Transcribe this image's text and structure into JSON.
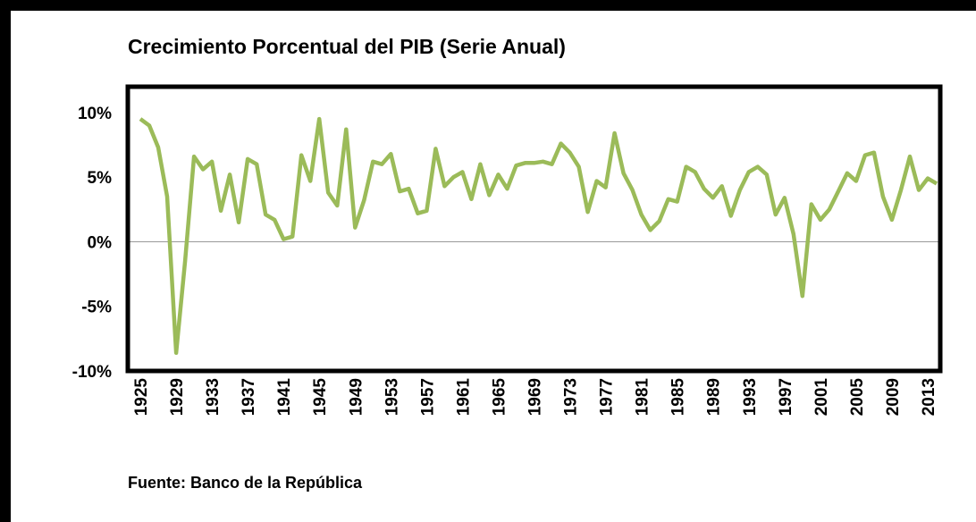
{
  "chart_data": {
    "type": "line",
    "title": "Crecimiento Porcentual del PIB (Serie Anual)",
    "source": "Fuente: Banco de la República",
    "x": [
      1925,
      1926,
      1927,
      1928,
      1929,
      1930,
      1931,
      1932,
      1933,
      1934,
      1935,
      1936,
      1937,
      1938,
      1939,
      1940,
      1941,
      1942,
      1943,
      1944,
      1945,
      1946,
      1947,
      1948,
      1949,
      1950,
      1951,
      1952,
      1953,
      1954,
      1955,
      1956,
      1957,
      1958,
      1959,
      1960,
      1961,
      1962,
      1963,
      1964,
      1965,
      1966,
      1967,
      1968,
      1969,
      1970,
      1971,
      1972,
      1973,
      1974,
      1975,
      1976,
      1977,
      1978,
      1979,
      1980,
      1981,
      1982,
      1983,
      1984,
      1985,
      1986,
      1987,
      1988,
      1989,
      1990,
      1991,
      1992,
      1993,
      1994,
      1995,
      1996,
      1997,
      1998,
      1999,
      2000,
      2001,
      2002,
      2003,
      2004,
      2005,
      2006,
      2007,
      2008,
      2009,
      2010,
      2011,
      2012,
      2013,
      2014
    ],
    "series": [
      {
        "name": "PIB",
        "color": "#9bbb59",
        "values": [
          9.5,
          9.0,
          7.3,
          3.5,
          -8.6,
          -1.5,
          6.6,
          5.6,
          6.2,
          2.4,
          5.2,
          1.5,
          6.4,
          6.0,
          2.1,
          1.7,
          0.2,
          0.4,
          6.7,
          4.7,
          9.5,
          3.8,
          2.8,
          8.7,
          1.1,
          3.2,
          6.2,
          6.0,
          6.8,
          3.9,
          4.1,
          2.2,
          2.4,
          7.2,
          4.3,
          5.0,
          5.4,
          3.3,
          6.0,
          3.6,
          5.2,
          4.1,
          5.9,
          6.1,
          6.1,
          6.2,
          6.0,
          7.6,
          6.9,
          5.8,
          2.3,
          4.7,
          4.2,
          8.4,
          5.3,
          4.0,
          2.1,
          0.9,
          1.6,
          3.3,
          3.1,
          5.8,
          5.4,
          4.1,
          3.4,
          4.3,
          2.0,
          4.0,
          5.4,
          5.8,
          5.2,
          2.1,
          3.4,
          0.6,
          -4.2,
          2.9,
          1.7,
          2.5,
          3.9,
          5.3,
          4.7,
          6.7,
          6.9,
          3.5,
          1.7,
          4.0,
          6.6,
          4.0,
          4.9,
          4.5
        ]
      }
    ],
    "xlim": [
      1923.6,
      2014.4
    ],
    "xticks": [
      1925,
      1929,
      1933,
      1937,
      1941,
      1945,
      1949,
      1953,
      1957,
      1961,
      1965,
      1969,
      1973,
      1977,
      1981,
      1985,
      1989,
      1993,
      1997,
      2001,
      2005,
      2009,
      2013
    ],
    "ylim": [
      -10,
      12
    ],
    "yticks": [
      {
        "value": -10,
        "label": "-10%"
      },
      {
        "value": -5,
        "label": "-5%"
      },
      {
        "value": 0,
        "label": "0%"
      },
      {
        "value": 5,
        "label": "5%"
      },
      {
        "value": 10,
        "label": "10%"
      }
    ]
  }
}
